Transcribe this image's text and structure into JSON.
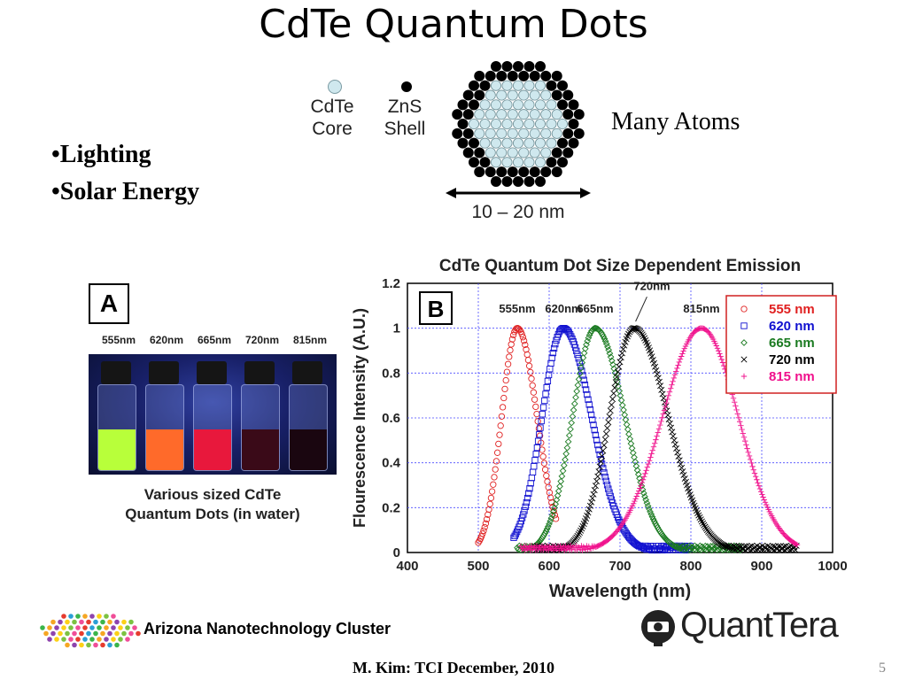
{
  "slide": {
    "title": "CdTe Quantum Dots",
    "bullets": [
      "•Lighting",
      "•Solar Energy"
    ],
    "many_atoms": "Many Atoms",
    "footer_org": "Arizona Nanotechnology Cluster",
    "footer_author": "M. Kim: TCI December, 2010",
    "slide_number": "5",
    "logo_text": "QuantTera"
  },
  "structure": {
    "core_label_1": "CdTe",
    "core_label_2": "Core",
    "shell_label_1": "ZnS",
    "shell_label_2": "Shell",
    "size_label": "10 – 20 nm",
    "core_color": "#cfe8ee",
    "shell_color": "#000000"
  },
  "photo": {
    "panel_label": "A",
    "vial_labels": [
      "555nm",
      "620nm",
      "665nm",
      "720nm",
      "815nm"
    ],
    "liquid_colors": [
      "#b8ff3a",
      "#ff6a2a",
      "#e8183c",
      "#3a0a18",
      "#1a0610"
    ],
    "caption_1": "Various sized CdTe",
    "caption_2": "Quantum Dots (in water)"
  },
  "chart_data": {
    "type": "scatter",
    "title": "CdTe Quantum Dot Size Dependent Emission",
    "panel_label": "B",
    "xlabel": "Wavelength (nm)",
    "ylabel": "Flourescence Intensity (A.U.)",
    "xlim": [
      400,
      1000
    ],
    "ylim": [
      0,
      1.2
    ],
    "xticks": [
      400,
      500,
      600,
      700,
      800,
      900,
      1000
    ],
    "yticks": [
      0,
      0.2,
      0.4,
      0.6,
      0.8,
      1,
      1.2
    ],
    "grid": true,
    "legend_position": "top-right",
    "series": [
      {
        "name": "555 nm",
        "peak_label": "555nm",
        "peak": 555,
        "width_left": 22,
        "width_right": 28,
        "x_range": [
          500,
          610
        ],
        "marker": "circle",
        "color": "#e02020"
      },
      {
        "name": "620 nm",
        "peak_label": "620nm",
        "peak": 620,
        "width_left": 30,
        "width_right": 40,
        "x_range": [
          550,
          800
        ],
        "marker": "square",
        "color": "#1010d0"
      },
      {
        "name": "665 nm",
        "peak_label": "665nm",
        "peak": 665,
        "width_left": 32,
        "width_right": 42,
        "x_range": [
          555,
          870
        ],
        "marker": "diamond",
        "color": "#1a7a20"
      },
      {
        "name": "720 nm",
        "peak_label": "720nm",
        "peak": 720,
        "width_left": 35,
        "width_right": 48,
        "x_range": [
          580,
          950
        ],
        "marker": "x",
        "color": "#000000"
      },
      {
        "name": "815 nm",
        "peak_label": "815nm",
        "peak": 815,
        "width_left": 55,
        "width_right": 52,
        "x_range": [
          560,
          950
        ],
        "marker": "plus",
        "color": "#f0108c"
      }
    ]
  }
}
